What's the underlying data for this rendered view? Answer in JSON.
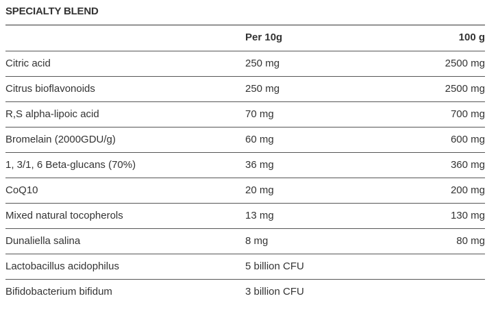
{
  "title": "SPECIALTY BLEND",
  "table": {
    "header": [
      "Per 10g",
      "100 g"
    ],
    "rows": [
      [
        "Citric acid",
        "250 mg",
        "2500 mg"
      ],
      [
        "Citrus bioflavonoids",
        "250 mg",
        "2500 mg"
      ],
      [
        "R,S alpha-lipoic acid",
        "70 mg",
        "700 mg"
      ],
      [
        "Bromelain (2000GDU/g)",
        "60 mg",
        "600 mg"
      ],
      [
        "1, 3/1, 6 Beta-glucans (70%)",
        "36 mg",
        "360 mg"
      ],
      [
        "CoQ10",
        "20 mg",
        "200 mg"
      ],
      [
        "Mixed natural tocopherols",
        "13 mg",
        "130 mg"
      ],
      [
        "Dunaliella salina",
        "8 mg",
        "80 mg"
      ],
      [
        "Lactobacillus acidophilus",
        "5 billion CFU"
      ],
      [
        "Bifidobacterium bifidum",
        "3 billion CFU"
      ]
    ]
  }
}
